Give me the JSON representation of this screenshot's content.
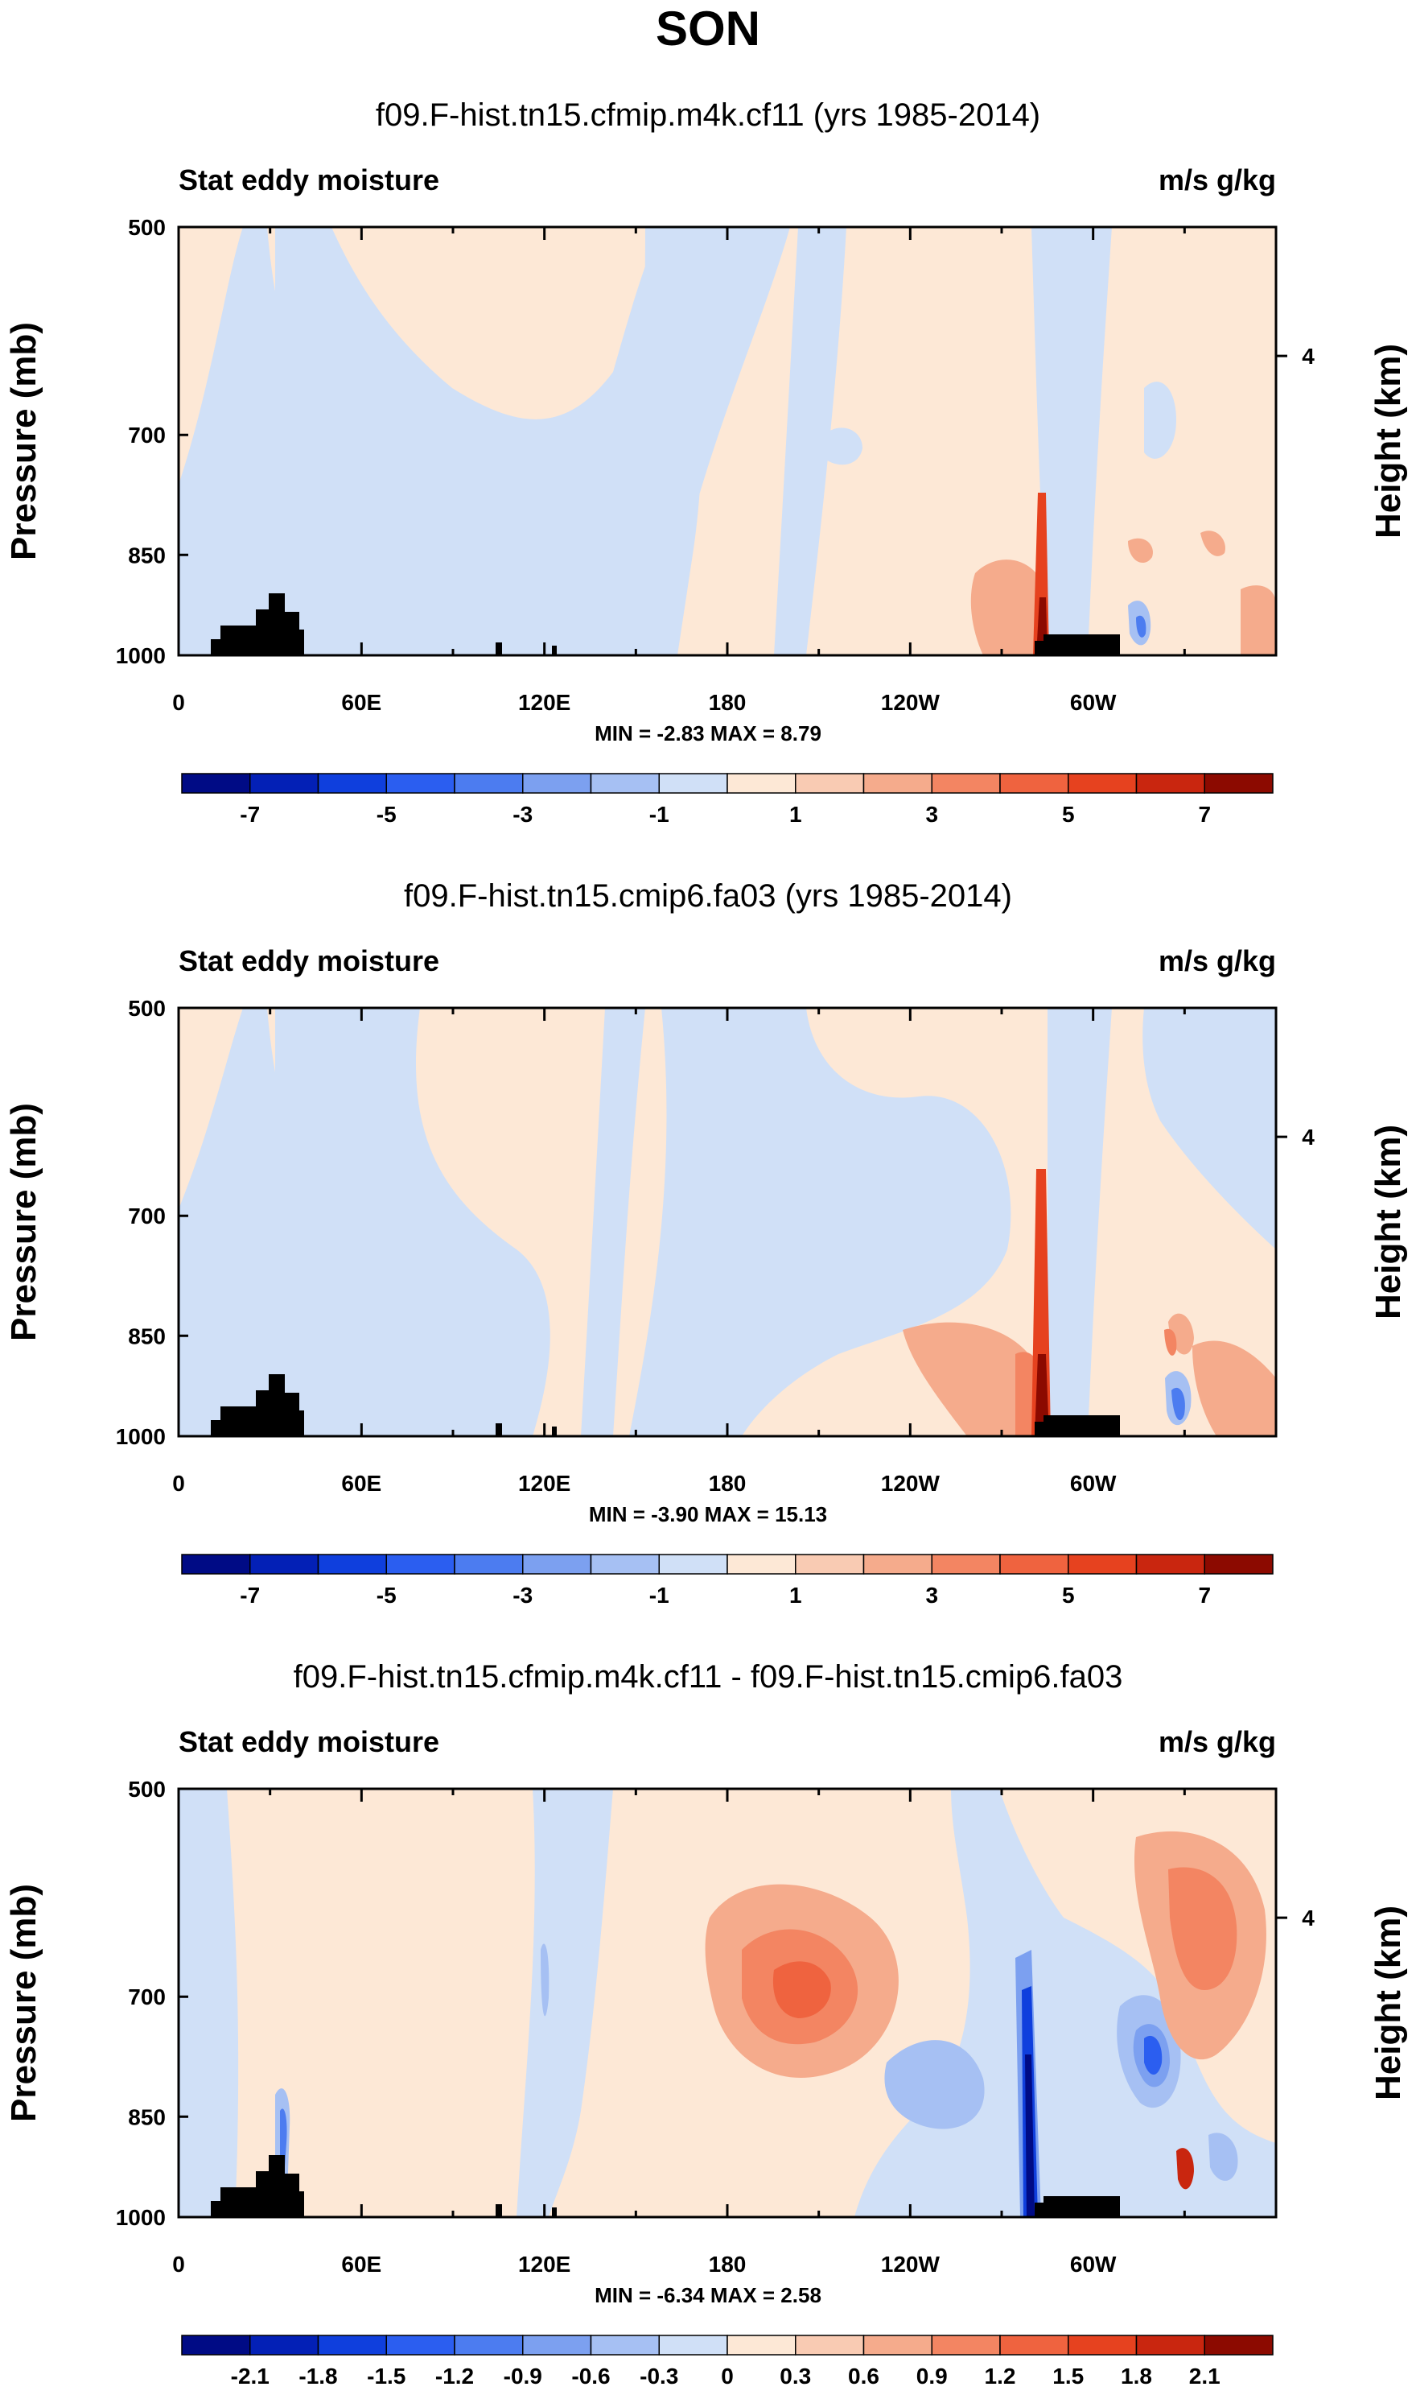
{
  "chart_data": {
    "type": "contour",
    "title": "SON",
    "levels_full": [
      -8,
      -7,
      -6,
      -5,
      -4,
      -3,
      -2,
      -1,
      0,
      1,
      2,
      3,
      4,
      5,
      6,
      7,
      8
    ],
    "levels_diff": [
      -2.4,
      -2.1,
      -1.8,
      -1.5,
      -1.2,
      -0.9,
      -0.6,
      -0.3,
      0,
      0.3,
      0.6,
      0.9,
      1.2,
      1.5,
      1.8,
      2.1,
      2.4
    ],
    "palette": [
      "#000b85",
      "#0320b6",
      "#0f3fdd",
      "#2b5ef0",
      "#4c7cf0",
      "#7ca0f0",
      "#a6c0f3",
      "#d0e0f7",
      "#fde8d6",
      "#f9cbb3",
      "#f5ab8c",
      "#f38562",
      "#ef633f",
      "#e6421f",
      "#c9260f",
      "#8c0a00"
    ],
    "colorbar_full_labels": [
      "-7",
      "-5",
      "-3",
      "-1",
      "1",
      "3",
      "5",
      "7"
    ],
    "colorbar_diff_labels": [
      "-2.1",
      "-1.8",
      "-1.5",
      "-1.2",
      "-0.9",
      "-0.6",
      "-0.3",
      "0",
      "0.3",
      "0.6",
      "0.9",
      "1.2",
      "1.5",
      "1.8",
      "2.1"
    ],
    "xlabel_ticks": [
      "0",
      "60E",
      "120E",
      "180",
      "120W",
      "60W"
    ],
    "x_range": [
      0,
      360
    ],
    "y_ticks": [
      "500",
      "700",
      "850",
      "1000"
    ],
    "y_range_mb": [
      1000,
      500
    ],
    "ylabel": "Pressure (mb)",
    "ylabel_right": "Height (km)",
    "right_ticks": [
      "4"
    ],
    "panels": [
      {
        "title": "f09.F-hist.tn15.cfmip.m4k.cf11 (yrs 1985-2014)",
        "left_string": "Stat eddy moisture",
        "right_string": "m/s g/kg",
        "min_label": "MIN =",
        "min": "-2.83",
        "max_label": "MAX =",
        "max": "8.79",
        "colorbar": "full"
      },
      {
        "title": "f09.F-hist.tn15.cmip6.fa03 (yrs 1985-2014)",
        "left_string": "Stat eddy moisture",
        "right_string": "m/s g/kg",
        "min_label": "MIN =",
        "min": "-3.90",
        "max_label": "MAX =",
        "max": "15.13",
        "colorbar": "full"
      },
      {
        "title": "f09.F-hist.tn15.cfmip.m4k.cf11 - f09.F-hist.tn15.cmip6.fa03",
        "left_string": "Stat eddy moisture",
        "right_string": "m/s g/kg",
        "min_label": "MIN =",
        "min": "-6.34",
        "max_label": "MAX =",
        "max": "2.58",
        "colorbar": "diff"
      }
    ]
  }
}
